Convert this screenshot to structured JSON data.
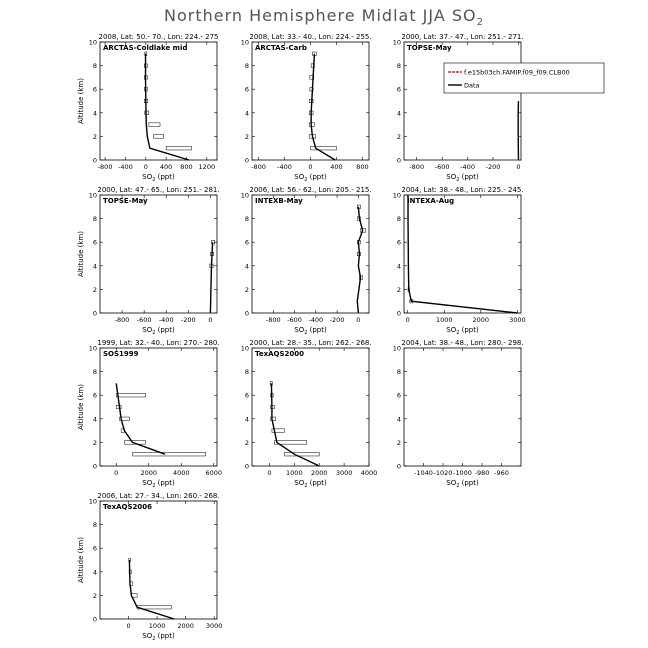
{
  "title": {
    "text": "Northern Hemisphere Midlat JJA SO",
    "sub": "2"
  },
  "legend": {
    "model_label": "f.e15b03ch.FAMIP.f09_f09.CLB00",
    "data_label": "Data",
    "model_color": "#cc0000",
    "data_color": "#000000"
  },
  "chart_data": [
    {
      "type": "line",
      "header": "2008, Lat: 50.- 70., Lon: 224.- 275",
      "label": "ARCTAS-Coldlake mid",
      "xlabel": "SO",
      "xlabel_sub": "2",
      "xlabel_unit": " (ppt)",
      "ylabel": "Altitude (km)",
      "xlim": [
        -900,
        1400
      ],
      "xticks": [
        -800,
        -400,
        0,
        400,
        800,
        1200
      ],
      "ylim": [
        0,
        10
      ],
      "yticks": [
        0,
        2,
        4,
        6,
        8,
        10
      ],
      "series": [
        {
          "name": "Data",
          "x": [
            850,
            80,
            30,
            10,
            5,
            0,
            -5,
            -5
          ],
          "y": [
            0,
            1,
            2,
            3,
            4,
            5,
            7,
            9
          ]
        }
      ],
      "boxes": [
        [
          400,
          900,
          1
        ],
        [
          150,
          350,
          2
        ],
        [
          60,
          280,
          3
        ],
        [
          -20,
          60,
          4
        ],
        [
          -30,
          40,
          5
        ],
        [
          -30,
          30,
          6
        ],
        [
          -30,
          30,
          7
        ],
        [
          -30,
          30,
          8
        ],
        [
          -20,
          20,
          9
        ]
      ]
    },
    {
      "type": "line",
      "header": "2008, Lat: 33.- 40., Lon: 224.- 255.",
      "label": "ARCTAS-Carb",
      "xlabel": "SO",
      "xlabel_sub": "2",
      "xlabel_unit": " (ppt)",
      "ylabel": "",
      "xlim": [
        -900,
        900
      ],
      "xticks": [
        -800,
        -400,
        0,
        400,
        800
      ],
      "ylim": [
        0,
        10
      ],
      "yticks": [
        0,
        2,
        4,
        6,
        8,
        10
      ],
      "series": [
        {
          "name": "Data",
          "x": [
            380,
            80,
            30,
            10,
            10,
            20,
            30,
            40,
            60
          ],
          "y": [
            0,
            1,
            2,
            3,
            4,
            5,
            6,
            7,
            9
          ]
        }
      ],
      "boxes": [
        [
          0,
          400,
          1
        ],
        [
          -20,
          80,
          2
        ],
        [
          -20,
          60,
          3
        ],
        [
          -20,
          40,
          4
        ],
        [
          -20,
          40,
          5
        ],
        [
          -10,
          40,
          6
        ],
        [
          -10,
          50,
          7
        ],
        [
          10,
          60,
          8
        ],
        [
          30,
          90,
          9
        ]
      ]
    },
    {
      "type": "line",
      "header": "2000, Lat: 37.- 47., Lon: 251.- 271.",
      "label": "TOPSE-May",
      "xlabel": "SO",
      "xlabel_sub": "2",
      "xlabel_unit": " (ppt)",
      "ylabel": "",
      "xlim": [
        -900,
        20
      ],
      "xticks": [
        -800,
        -600,
        -400,
        -200,
        0
      ],
      "ylim": [
        0,
        10
      ],
      "yticks": [
        0,
        2,
        4,
        6,
        8,
        10
      ],
      "series": [
        {
          "name": "Data",
          "x": [
            0,
            -2,
            -2,
            0
          ],
          "y": [
            0,
            2,
            4,
            5
          ]
        }
      ],
      "boxes": [],
      "legend": true
    },
    {
      "type": "line",
      "header": "2000, Lat: 47.- 65., Lon: 251.- 281.",
      "label": "TOPSE-May",
      "xlabel": "SO",
      "xlabel_sub": "2",
      "xlabel_unit": " (ppt)",
      "ylabel": "Altitude (km)",
      "xlim": [
        -1000,
        60
      ],
      "xticks": [
        -800,
        -600,
        -400,
        -200,
        0
      ],
      "ylim": [
        0,
        10
      ],
      "yticks": [
        0,
        2,
        4,
        6,
        8,
        10
      ],
      "series": [
        {
          "name": "Data",
          "x": [
            0,
            5,
            10,
            20
          ],
          "y": [
            0,
            2,
            4,
            6
          ]
        }
      ],
      "boxes": [
        [
          -5,
          25,
          4
        ],
        [
          0,
          30,
          5
        ],
        [
          10,
          40,
          6
        ]
      ]
    },
    {
      "type": "line",
      "header": "2006, Lat: 56.- 62., Lon: 205.- 215.",
      "label": "INTEXB-May",
      "xlabel": "SO",
      "xlabel_sub": "2",
      "xlabel_unit": " (ppt)",
      "ylabel": "",
      "xlim": [
        -1000,
        100
      ],
      "xticks": [
        -800,
        -600,
        -400,
        -200,
        0
      ],
      "ylim": [
        0,
        10
      ],
      "yticks": [
        0,
        2,
        4,
        6,
        8,
        10
      ],
      "series": [
        {
          "name": "Data",
          "x": [
            0,
            -10,
            20,
            0,
            10,
            0,
            40,
            10,
            0
          ],
          "y": [
            0,
            1,
            3,
            4,
            5,
            6,
            7,
            8,
            9
          ]
        }
      ],
      "boxes": [
        [
          10,
          40,
          3
        ],
        [
          -10,
          20,
          5
        ],
        [
          -10,
          20,
          6
        ],
        [
          20,
          70,
          7
        ],
        [
          -10,
          20,
          8
        ],
        [
          -10,
          20,
          9
        ]
      ]
    },
    {
      "type": "line",
      "header": "2004, Lat: 38.- 48., Lon: 225.- 245.",
      "label": "INTEXA-Aug",
      "xlabel": "SO",
      "xlabel_sub": "2",
      "xlabel_unit": " (ppt)",
      "ylabel": "",
      "xlim": [
        -100,
        3100
      ],
      "xticks": [
        0,
        1000,
        2000,
        3000
      ],
      "ylim": [
        0,
        10
      ],
      "yticks": [
        0,
        2,
        4,
        6,
        8,
        10
      ],
      "series": [
        {
          "name": "Data",
          "x": [
            3000,
            100,
            30,
            20,
            15,
            10,
            10
          ],
          "y": [
            0,
            1,
            2,
            4,
            6,
            8,
            10
          ]
        }
      ],
      "boxes": [
        [
          60,
          140,
          1
        ],
        [
          10,
          50,
          2
        ]
      ]
    },
    {
      "type": "line",
      "header": "1999, Lat: 32.- 40., Lon: 270.- 280.",
      "label": "SOS1999",
      "xlabel": "SO",
      "xlabel_sub": "2",
      "xlabel_unit": " (ppt)",
      "ylabel": "Altitude (km)",
      "xlim": [
        -1000,
        6200
      ],
      "xticks": [
        0,
        2000,
        4000,
        6000
      ],
      "ylim": [
        0,
        10
      ],
      "yticks": [
        0,
        2,
        4,
        6,
        8,
        10
      ],
      "series": [
        {
          "name": "Data",
          "x": [
            3000,
            1000,
            500,
            300,
            200,
            0
          ],
          "y": [
            1,
            2,
            3,
            4,
            5,
            7
          ]
        }
      ],
      "boxes": [
        [
          1000,
          5500,
          1
        ],
        [
          500,
          1800,
          2
        ],
        [
          300,
          500,
          3
        ],
        [
          200,
          800,
          4
        ],
        [
          0,
          300,
          5
        ],
        [
          0,
          1800,
          6
        ]
      ]
    },
    {
      "type": "line",
      "header": "2000, Lat: 28.- 35., Lon: 262.- 268.",
      "label": "TexAQS2000",
      "xlabel": "SO",
      "xlabel_sub": "2",
      "xlabel_unit": " (ppt)",
      "ylabel": "",
      "xlim": [
        -700,
        4000
      ],
      "xticks": [
        0,
        1000,
        2000,
        3000,
        4000
      ],
      "ylim": [
        0,
        10
      ],
      "yticks": [
        0,
        2,
        4,
        6,
        8,
        10
      ],
      "series": [
        {
          "name": "Data",
          "x": [
            2000,
            1000,
            300,
            200,
            100,
            100,
            80
          ],
          "y": [
            0,
            1,
            2,
            3,
            4,
            5,
            7
          ]
        }
      ],
      "boxes": [
        [
          600,
          2000,
          1
        ],
        [
          200,
          1500,
          2
        ],
        [
          100,
          600,
          3
        ],
        [
          50,
          250,
          4
        ],
        [
          50,
          200,
          5
        ],
        [
          50,
          150,
          6
        ],
        [
          30,
          120,
          7
        ]
      ]
    },
    {
      "type": "line",
      "header": "2004, Lat: 38.- 48., Lon: 280.- 298.",
      "label": "",
      "xlabel": "SO",
      "xlabel_sub": "2",
      "xlabel_unit": " (ppt)",
      "ylabel": "",
      "xlim": [
        -1060,
        -940
      ],
      "xticks": [
        -1040,
        -1020,
        -1000,
        -980,
        -960
      ],
      "ylim": [
        0,
        10
      ],
      "yticks": [
        0,
        2,
        4,
        6,
        8,
        10
      ],
      "series": [],
      "boxes": []
    },
    {
      "type": "line",
      "header": "2006, Lat: 27.- 34., Lon: 260.- 268.",
      "label": "TexAQS2006",
      "xlabel": "SO",
      "xlabel_sub": "2",
      "xlabel_unit": " (ppt)",
      "ylabel": "Altitude (km)",
      "xlim": [
        -1000,
        3100
      ],
      "xticks": [
        0,
        1000,
        2000,
        3000
      ],
      "ylim": [
        0,
        10
      ],
      "yticks": [
        0,
        2,
        4,
        6,
        8,
        10
      ],
      "series": [
        {
          "name": "Data",
          "x": [
            1600,
            300,
            100,
            50,
            30
          ],
          "y": [
            0,
            1,
            2,
            3,
            5
          ]
        }
      ],
      "boxes": [
        [
          300,
          1500,
          1
        ],
        [
          100,
          300,
          2
        ],
        [
          50,
          150,
          3
        ],
        [
          20,
          100,
          4
        ],
        [
          10,
          60,
          5
        ]
      ]
    }
  ]
}
